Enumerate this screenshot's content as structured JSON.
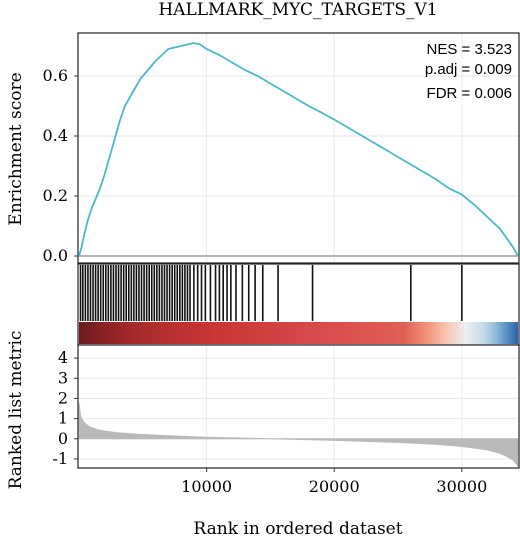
{
  "chart_data": [
    {
      "type": "line",
      "title": "HALLMARK_MYC_TARGETS_V1",
      "ylabel": "Enrichment score",
      "ylim": [
        -0.02,
        0.74
      ],
      "yticks": [
        "0.0",
        "0.2",
        "0.4",
        "0.6"
      ],
      "grid": true,
      "annotations": [
        "NES = 3.523",
        "p.adj = 0.009",
        "FDR = 0.006"
      ],
      "series": [
        {
          "color": "#4ab9c8",
          "x": [
            0,
            200,
            400,
            700,
            1000,
            1300,
            1600,
            2000,
            2400,
            2800,
            3200,
            3600,
            4000,
            4400,
            4800,
            5200,
            5600,
            6000,
            6500,
            7000,
            7500,
            8000,
            8500,
            9000,
            9500,
            10000,
            11000,
            12000,
            13000,
            14000,
            15000,
            16000,
            17000,
            18000,
            19000,
            20000,
            21000,
            22000,
            23000,
            24000,
            25000,
            26000,
            27000,
            28000,
            29000,
            30000,
            31000,
            32000,
            33000,
            34000,
            34400
          ],
          "y": [
            0.0,
            0.03,
            0.07,
            0.12,
            0.16,
            0.19,
            0.22,
            0.27,
            0.33,
            0.39,
            0.45,
            0.5,
            0.53,
            0.56,
            0.59,
            0.61,
            0.63,
            0.65,
            0.67,
            0.69,
            0.695,
            0.7,
            0.705,
            0.71,
            0.705,
            0.69,
            0.67,
            0.645,
            0.62,
            0.6,
            0.575,
            0.55,
            0.525,
            0.5,
            0.478,
            0.455,
            0.43,
            0.405,
            0.38,
            0.355,
            0.33,
            0.305,
            0.28,
            0.255,
            0.225,
            0.205,
            0.17,
            0.13,
            0.09,
            0.03,
            0.0
          ]
        }
      ]
    },
    {
      "type": "gene_set_hits",
      "x": [
        120,
        300,
        500,
        700,
        900,
        1100,
        1300,
        1500,
        1700,
        1900,
        2100,
        2300,
        2500,
        2700,
        2900,
        3100,
        3300,
        3500,
        3700,
        3900,
        4100,
        4300,
        4500,
        4700,
        4900,
        5100,
        5300,
        5500,
        5700,
        5900,
        6100,
        6300,
        6500,
        6700,
        6900,
        7100,
        7300,
        7500,
        7700,
        7900,
        8100,
        8300,
        8500,
        8700,
        9000,
        9300,
        9600,
        9900,
        10300,
        10700,
        11000,
        11300,
        11600,
        11900,
        12300,
        12800,
        13300,
        13800,
        14400,
        15600,
        18300,
        26000,
        30000
      ],
      "gradient_colors": [
        "#6b1a1e",
        "#a52a2a",
        "#c93434",
        "#d94b4b",
        "#e05f56",
        "#f08f78",
        "#f8c9b6",
        "#eeeeee",
        "#c7dbea",
        "#8fbad9",
        "#4a86bd",
        "#3060a8"
      ]
    },
    {
      "type": "area",
      "ylabel": "Ranked list metric",
      "xlabel": "Rank in ordered dataset",
      "xlim": [
        0,
        34400
      ],
      "ylim": [
        -1.4,
        4.6
      ],
      "xticks": [
        "10000",
        "20000",
        "30000"
      ],
      "yticks": [
        "-1",
        "0",
        "1",
        "2",
        "3",
        "4"
      ],
      "color": "#b9b9bc",
      "x": [
        0,
        100,
        200,
        400,
        600,
        800,
        1000,
        1500,
        2000,
        3000,
        4000,
        5000,
        7000,
        10000,
        15000,
        20000,
        25000,
        28000,
        30000,
        32000,
        33000,
        33600,
        34000,
        34400
      ],
      "y": [
        1.8,
        1.2,
        1.0,
        0.82,
        0.7,
        0.6,
        0.55,
        0.45,
        0.38,
        0.3,
        0.25,
        0.21,
        0.15,
        0.08,
        0.0,
        -0.08,
        -0.18,
        -0.28,
        -0.38,
        -0.55,
        -0.72,
        -0.9,
        -1.05,
        -1.35
      ]
    }
  ]
}
